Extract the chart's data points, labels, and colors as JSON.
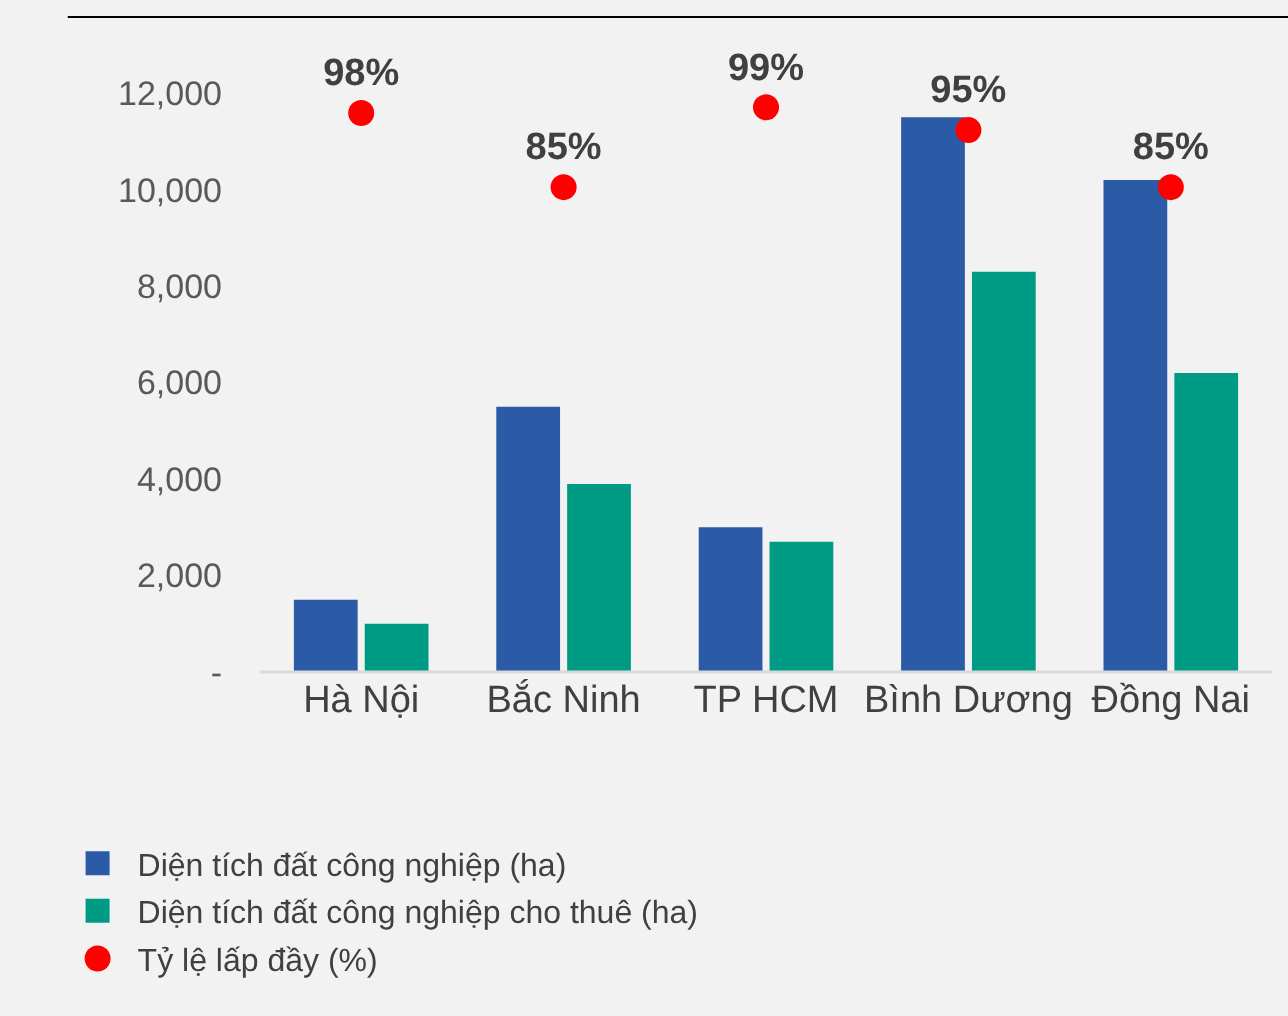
{
  "chart_data": {
    "type": "bar",
    "categories": [
      "Hà Nội",
      "Bắc Ninh",
      "TP HCM",
      "Bình Dương",
      "Đồng Nai"
    ],
    "series": [
      {
        "name": "Diện tích đất công nghiệp (ha)",
        "color": "#2b5aa6",
        "values": [
          1500,
          5500,
          3000,
          11500,
          10200
        ]
      },
      {
        "name": "Diện tích đất công nghiệp cho thuê (ha)",
        "color": "#009b84",
        "values": [
          1000,
          3900,
          2700,
          8300,
          6200
        ]
      },
      {
        "name": "Tỷ lệ lấp đầy (%)",
        "type": "scatter",
        "axis": "y2",
        "color": "#ff0000",
        "marker": "circle",
        "values": [
          98,
          85,
          99,
          95,
          85
        ],
        "value_labels": [
          "98%",
          "85%",
          "99%",
          "95%",
          "85%"
        ]
      }
    ],
    "ylim": [
      0,
      13600
    ],
    "yticks": [
      {
        "value": 0,
        "label": "-"
      },
      {
        "value": 2000,
        "label": "2,000"
      },
      {
        "value": 4000,
        "label": "4,000"
      },
      {
        "value": 6000,
        "label": "6,000"
      },
      {
        "value": 8000,
        "label": "8,000"
      },
      {
        "value": 10000,
        "label": "10,000"
      },
      {
        "value": 12000,
        "label": "12,000"
      }
    ],
    "y2lim": [
      0,
      115
    ],
    "grid": false,
    "legend": "bottom"
  }
}
